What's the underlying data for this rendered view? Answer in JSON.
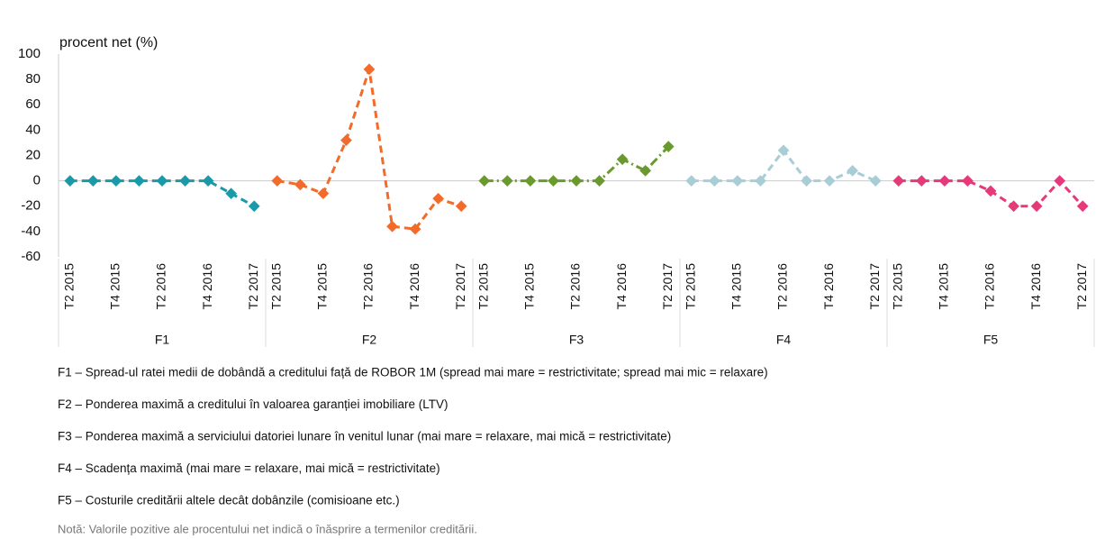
{
  "chart_data": {
    "type": "line",
    "ylabel": "procent net (%)",
    "ylim": [
      -60,
      100
    ],
    "yticks": [
      -60,
      -40,
      -20,
      0,
      20,
      40,
      60,
      80,
      100
    ],
    "grid": false,
    "categories": [
      "T2 2015",
      null,
      "T4 2015",
      null,
      "T2 2016",
      null,
      "T4 2016",
      null,
      "T2 2017"
    ],
    "series": [
      {
        "name": "F1",
        "color": "#1a9aa8",
        "dash": "dashed",
        "values": [
          0,
          0,
          0,
          0,
          0,
          0,
          0,
          -10,
          -20
        ]
      },
      {
        "name": "F2",
        "color": "#f26b2a",
        "dash": "dashed",
        "values": [
          0,
          -3,
          -10,
          32,
          88,
          -36,
          -38,
          -14,
          -20
        ]
      },
      {
        "name": "F3",
        "color": "#6a9a2e",
        "dash": "dashdot",
        "values": [
          0,
          0,
          0,
          0,
          0,
          0,
          17,
          8,
          27
        ]
      },
      {
        "name": "F4",
        "color": "#a8cdd6",
        "dash": "dashed",
        "values": [
          0,
          0,
          0,
          0,
          24,
          0,
          0,
          8,
          0
        ]
      },
      {
        "name": "F5",
        "color": "#e5397a",
        "dash": "dashed",
        "values": [
          0,
          0,
          0,
          0,
          -8,
          -20,
          -20,
          0,
          -20
        ]
      }
    ]
  },
  "notes": [
    "F1 – Spread-ul ratei medii de dobândă  a creditului față de ROBOR 1M (spread mai mare = restrictivitate; spread mai mic = relaxare)",
    "F2 – Ponderea maximă a creditului în valoarea garanției imobiliare  (LTV)",
    "F3 – Ponderea maximă a serviciului datoriei lunare în venitul lunar  (mai mare = relaxare, mai mică = restrictivitate)",
    "F4 – Scadența maximă (mai mare = relaxare, mai mică = restrictivitate)",
    "F5 – Costurile creditării altele decât dobânzile  (comisioane  etc.)"
  ],
  "footnote": "Notă: Valorile pozitive ale procentului net indică o înăsprire a termenilor creditării."
}
